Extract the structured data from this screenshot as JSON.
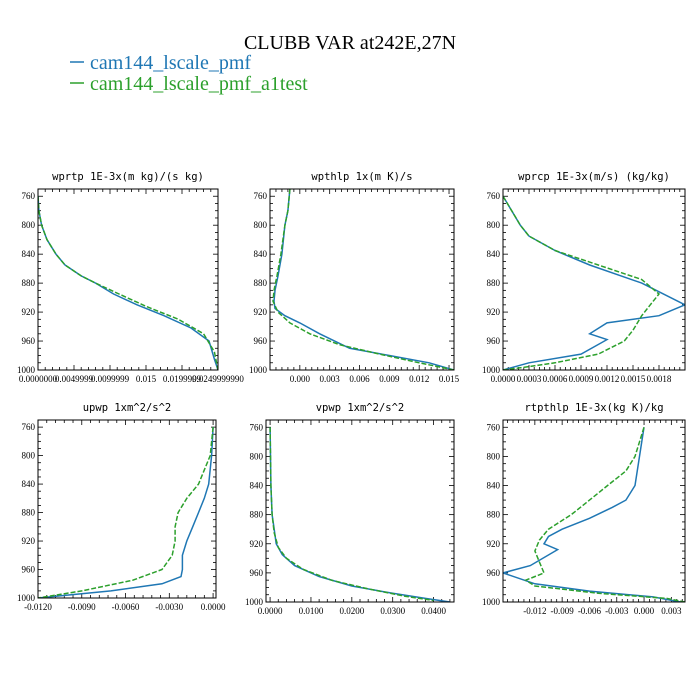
{
  "figure": {
    "title": "CLUBB VAR at242E,27N",
    "legend": [
      {
        "label": "cam144_lscale_pmf",
        "color": "#1f77b4",
        "dash": false
      },
      {
        "label": "cam144_lscale_pmf_a1test",
        "color": "#2ca02c",
        "dash": true
      }
    ]
  },
  "chart_data": [
    {
      "type": "line",
      "title": "wprtp  1E-3x(m kg)/(s kg)",
      "xlim": [
        0.0,
        1.0
      ],
      "ylim": [
        750,
        1000
      ],
      "y_inverted": true,
      "yticks": [
        "760",
        "800",
        "840",
        "880",
        "920",
        "960",
        "1000"
      ],
      "xticks": [
        {
          "v": 0.0,
          "label": "0.0000000"
        },
        {
          "v": 0.2,
          "label": "0.0049999"
        },
        {
          "v": 0.4,
          "label": "0.0099999"
        },
        {
          "v": 0.6,
          "label": "0.015"
        },
        {
          "v": 0.8,
          "label": "0.0199999"
        },
        {
          "v": 1.0,
          "label": "0.0249999990"
        }
      ],
      "series": [
        {
          "name": "cam144_lscale_pmf",
          "x": [
            0.0,
            0.005,
            0.02,
            0.05,
            0.1,
            0.15,
            0.24,
            0.32,
            0.42,
            0.55,
            0.7,
            0.85,
            0.95,
            0.98,
            1.0
          ],
          "y": [
            760,
            780,
            800,
            820,
            840,
            855,
            870,
            880,
            895,
            910,
            925,
            942,
            960,
            985,
            1000
          ]
        },
        {
          "name": "cam144_lscale_pmf_a1test",
          "x": [
            0.0,
            0.005,
            0.02,
            0.05,
            0.1,
            0.15,
            0.24,
            0.32,
            0.45,
            0.6,
            0.78,
            0.92,
            0.98,
            1.0
          ],
          "y": [
            760,
            780,
            800,
            820,
            840,
            855,
            870,
            880,
            895,
            912,
            930,
            950,
            975,
            1000
          ]
        }
      ]
    },
    {
      "type": "line",
      "title": "wpthlp  1x(m K)/s",
      "xlim": [
        -0.003,
        0.0155
      ],
      "ylim": [
        750,
        1000
      ],
      "y_inverted": true,
      "yticks": [
        "760",
        "800",
        "840",
        "880",
        "920",
        "960",
        "1000"
      ],
      "xticks": [
        {
          "v": 0.0,
          "label": "0.000"
        },
        {
          "v": 0.003,
          "label": "0.003"
        },
        {
          "v": 0.006,
          "label": "0.006"
        },
        {
          "v": 0.009,
          "label": "0.009"
        },
        {
          "v": 0.012,
          "label": "0.012"
        },
        {
          "v": 0.015,
          "label": "0.015"
        }
      ],
      "series": [
        {
          "name": "cam144_lscale_pmf",
          "x": [
            -0.001,
            -0.0012,
            -0.0015,
            -0.0018,
            -0.0022,
            -0.0025,
            -0.0026,
            -0.0025,
            -0.0015,
            0.0,
            0.002,
            0.005,
            0.009,
            0.013,
            0.0155
          ],
          "y": [
            750,
            780,
            800,
            840,
            870,
            890,
            905,
            915,
            925,
            935,
            950,
            970,
            980,
            990,
            1000
          ]
        },
        {
          "name": "cam144_lscale_pmf_a1test",
          "x": [
            -0.001,
            -0.0012,
            -0.0015,
            -0.0019,
            -0.0023,
            -0.0026,
            -0.0027,
            -0.0022,
            -0.001,
            0.001,
            0.004,
            0.008,
            0.012,
            0.0155
          ],
          "y": [
            750,
            780,
            800,
            840,
            870,
            890,
            905,
            920,
            935,
            950,
            965,
            978,
            990,
            1000
          ]
        }
      ]
    },
    {
      "type": "line",
      "title": "wprcp  1E-3x(m/s) (kg/kg)",
      "xlim": [
        0.0,
        0.0021
      ],
      "ylim": [
        750,
        1000
      ],
      "y_inverted": true,
      "yticks": [
        "760",
        "800",
        "840",
        "880",
        "920",
        "960",
        "1000"
      ],
      "xticks": [
        {
          "v": 0.0,
          "label": "0.0000"
        },
        {
          "v": 0.0003,
          "label": "0.0003"
        },
        {
          "v": 0.0006,
          "label": "0.0006"
        },
        {
          "v": 0.0009,
          "label": "0.0009"
        },
        {
          "v": 0.0012,
          "label": "0.0012"
        },
        {
          "v": 0.0015,
          "label": "0.0015"
        },
        {
          "v": 0.0018,
          "label": "0.0018"
        }
      ],
      "series": [
        {
          "name": "cam144_lscale_pmf",
          "x": [
            0.0,
            0.0001,
            0.0002,
            0.0003,
            0.0006,
            0.001,
            0.0016,
            0.0021,
            0.0018,
            0.0012,
            0.001,
            0.0012,
            0.0009,
            0.0003,
            0.0
          ],
          "y": [
            760,
            780,
            800,
            815,
            835,
            855,
            880,
            910,
            925,
            935,
            950,
            958,
            978,
            990,
            1000
          ]
        },
        {
          "name": "cam144_lscale_pmf_a1test",
          "x": [
            0.0,
            0.0001,
            0.0002,
            0.0003,
            0.0006,
            0.0011,
            0.0016,
            0.0018,
            0.0017,
            0.0016,
            0.0015,
            0.0014,
            0.0011,
            0.0006,
            0.0002,
            0.0
          ],
          "y": [
            760,
            780,
            800,
            815,
            835,
            855,
            875,
            895,
            910,
            925,
            945,
            960,
            978,
            990,
            997,
            1000
          ]
        }
      ]
    },
    {
      "type": "line",
      "title": "upwp  1xm^2/s^2",
      "xlim": [
        -0.012,
        0.0002
      ],
      "ylim": [
        750,
        1000
      ],
      "y_inverted": true,
      "yticks": [
        "760",
        "800",
        "840",
        "880",
        "920",
        "960",
        "1000"
      ],
      "xticks": [
        {
          "v": -0.012,
          "label": "-0.0120"
        },
        {
          "v": -0.009,
          "label": "-0.0090"
        },
        {
          "v": -0.006,
          "label": "-0.0060"
        },
        {
          "v": -0.003,
          "label": "-0.0030"
        },
        {
          "v": 0.0,
          "label": "0.0000"
        }
      ],
      "series": [
        {
          "name": "cam144_lscale_pmf",
          "x": [
            0.0,
            -0.0001,
            -0.0003,
            -0.0006,
            -0.001,
            -0.0014,
            -0.0018,
            -0.0021,
            -0.0021,
            -0.0022,
            -0.0035,
            -0.007,
            -0.012
          ],
          "y": [
            760,
            800,
            840,
            860,
            880,
            900,
            920,
            940,
            960,
            970,
            980,
            990,
            1000
          ]
        },
        {
          "name": "cam144_lscale_pmf_a1test",
          "x": [
            0.0,
            -0.0002,
            -0.001,
            -0.0018,
            -0.0024,
            -0.0026,
            -0.0026,
            -0.0028,
            -0.0035,
            -0.0055,
            -0.009,
            -0.012
          ],
          "y": [
            760,
            800,
            840,
            860,
            880,
            900,
            920,
            940,
            960,
            975,
            990,
            1000
          ]
        }
      ]
    },
    {
      "type": "line",
      "title": "vpwp  1xm^2/s^2",
      "xlim": [
        -0.001,
        0.045
      ],
      "ylim": [
        750,
        1000
      ],
      "y_inverted": true,
      "yticks": [
        "760",
        "800",
        "840",
        "880",
        "920",
        "960",
        "1000"
      ],
      "xticks": [
        {
          "v": 0.0,
          "label": "0.0000"
        },
        {
          "v": 0.01,
          "label": "0.0100"
        },
        {
          "v": 0.02,
          "label": "0.0200"
        },
        {
          "v": 0.03,
          "label": "0.0300"
        },
        {
          "v": 0.04,
          "label": "0.0400"
        }
      ],
      "series": [
        {
          "name": "cam144_lscale_pmf",
          "x": [
            0.0,
            0.0002,
            0.0005,
            0.001,
            0.0015,
            0.003,
            0.006,
            0.012,
            0.02,
            0.03,
            0.038,
            0.044
          ],
          "y": [
            760,
            840,
            880,
            900,
            920,
            935,
            950,
            965,
            978,
            988,
            995,
            1000
          ]
        },
        {
          "name": "cam144_lscale_pmf_a1test",
          "x": [
            0.0,
            0.0002,
            0.0005,
            0.001,
            0.002,
            0.004,
            0.008,
            0.015,
            0.024,
            0.033,
            0.04
          ],
          "y": [
            760,
            840,
            880,
            905,
            925,
            940,
            955,
            970,
            982,
            992,
            998
          ]
        }
      ]
    },
    {
      "type": "line",
      "title": "rtpthlp  1E-3x(kg K)/kg",
      "xlim": [
        -0.0155,
        0.0045
      ],
      "ylim": [
        750,
        1000
      ],
      "y_inverted": true,
      "yticks": [
        "760",
        "800",
        "840",
        "880",
        "920",
        "960",
        "1000"
      ],
      "xticks": [
        {
          "v": -0.012,
          "label": "-0.012"
        },
        {
          "v": -0.009,
          "label": "-0.009"
        },
        {
          "v": -0.006,
          "label": "-0.006"
        },
        {
          "v": -0.003,
          "label": "-0.003"
        },
        {
          "v": 0.0,
          "label": "0.000"
        },
        {
          "v": 0.003,
          "label": "0.003"
        }
      ],
      "series": [
        {
          "name": "cam144_lscale_pmf",
          "x": [
            0.0,
            -0.0005,
            -0.001,
            -0.002,
            -0.0035,
            -0.006,
            -0.009,
            -0.0105,
            -0.011,
            -0.0095,
            -0.0125,
            -0.0155,
            -0.012,
            -0.006,
            0.001,
            0.004
          ],
          "y": [
            760,
            800,
            840,
            860,
            870,
            885,
            900,
            910,
            920,
            928,
            950,
            960,
            975,
            985,
            993,
            1000
          ]
        },
        {
          "name": "cam144_lscale_pmf_a1test",
          "x": [
            0.0,
            -0.001,
            -0.002,
            -0.004,
            -0.006,
            -0.008,
            -0.0105,
            -0.0115,
            -0.012,
            -0.0115,
            -0.011,
            -0.013,
            -0.012,
            -0.005,
            0.0025,
            0.0045
          ],
          "y": [
            760,
            800,
            820,
            840,
            860,
            880,
            900,
            915,
            930,
            945,
            960,
            970,
            978,
            988,
            995,
            1000
          ]
        }
      ]
    }
  ]
}
